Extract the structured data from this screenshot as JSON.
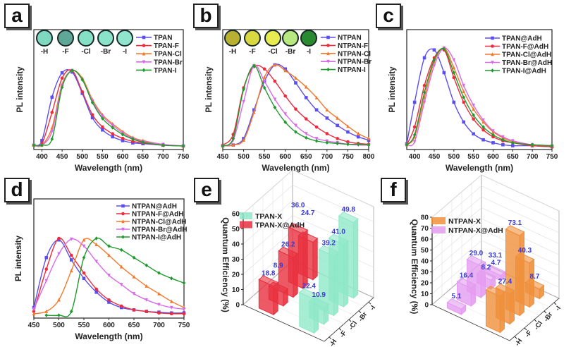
{
  "panels": [
    "a",
    "b",
    "c",
    "d",
    "e",
    "f"
  ],
  "chart_data": [
    {
      "panel": "a",
      "type": "line",
      "xlabel": "Wavelength (nm)",
      "ylabel": "PL intensity",
      "xlim": [
        380,
        750
      ],
      "xticks": [
        400,
        450,
        500,
        550,
        600,
        650,
        700,
        750
      ],
      "inset_labels": [
        "-H",
        "-F",
        "-Cl",
        "-Br",
        "-I"
      ],
      "inset_colors": [
        "#7fd8c0",
        "#5fa898",
        "#86e0c6",
        "#8ae2c8",
        "#8fe6cc"
      ],
      "x": [
        380,
        400,
        425,
        450,
        475,
        500,
        525,
        550,
        575,
        600,
        625,
        650,
        700,
        750
      ],
      "series": [
        {
          "name": "TPAN",
          "color": "#5a4ef0",
          "marker": "square",
          "values": [
            0.02,
            0.08,
            0.65,
            0.97,
            0.98,
            0.7,
            0.38,
            0.22,
            0.13,
            0.08,
            0.05,
            0.04,
            0.02,
            0.01
          ]
        },
        {
          "name": "TPAN-F",
          "color": "#ee2a3c",
          "marker": "circle",
          "values": [
            0.02,
            0.04,
            0.45,
            0.9,
            1.0,
            0.72,
            0.42,
            0.26,
            0.17,
            0.11,
            0.07,
            0.05,
            0.02,
            0.01
          ]
        },
        {
          "name": "TPAN-Cl",
          "color": "#f5772a",
          "marker": "triangle-up",
          "values": [
            0.02,
            0.02,
            0.25,
            0.82,
            1.0,
            0.9,
            0.62,
            0.42,
            0.3,
            0.2,
            0.12,
            0.08,
            0.03,
            0.01
          ]
        },
        {
          "name": "TPAN-Br",
          "color": "#d86ae8",
          "marker": "triangle-down",
          "values": [
            0.02,
            0.02,
            0.2,
            0.8,
            1.0,
            0.88,
            0.6,
            0.4,
            0.28,
            0.18,
            0.11,
            0.07,
            0.03,
            0.01
          ]
        },
        {
          "name": "TPAN-I",
          "color": "#1f9a2c",
          "marker": "star",
          "values": [
            0.02,
            0.02,
            0.1,
            0.78,
            1.0,
            0.88,
            0.58,
            0.37,
            0.25,
            0.16,
            0.1,
            0.06,
            0.02,
            0.01
          ]
        }
      ]
    },
    {
      "panel": "b",
      "type": "line",
      "xlabel": "Wavelength (nm)",
      "ylabel": "PL intensity",
      "xlim": [
        450,
        800
      ],
      "xticks": [
        450,
        500,
        550,
        600,
        650,
        700,
        750,
        800
      ],
      "inset_labels": [
        "-H",
        "-F",
        "-Cl",
        "-Br",
        "-I"
      ],
      "inset_colors": [
        "#b8b030",
        "#d8d840",
        "#e8ec50",
        "#b8e880",
        "#2a8a30"
      ],
      "x": [
        450,
        475,
        500,
        525,
        550,
        575,
        600,
        625,
        650,
        675,
        700,
        725,
        750,
        775,
        800
      ],
      "series": [
        {
          "name": "NTPAN",
          "color": "#5a4ef0",
          "marker": "square",
          "values": [
            0.01,
            0.02,
            0.1,
            0.45,
            0.8,
            1.0,
            0.95,
            0.78,
            0.6,
            0.45,
            0.35,
            0.26,
            0.18,
            0.12,
            0.08
          ]
        },
        {
          "name": "NTPAN-F",
          "color": "#ee2a3c",
          "marker": "circle",
          "values": [
            0.02,
            0.15,
            0.72,
            0.98,
            0.95,
            0.8,
            0.62,
            0.46,
            0.34,
            0.24,
            0.16,
            0.1,
            0.06,
            0.04,
            0.03
          ]
        },
        {
          "name": "NTPAN-Cl",
          "color": "#f5772a",
          "marker": "triangle-up",
          "values": [
            0.01,
            0.02,
            0.08,
            0.42,
            0.85,
            1.0,
            0.93,
            0.84,
            0.73,
            0.6,
            0.45,
            0.35,
            0.25,
            0.16,
            0.1
          ]
        },
        {
          "name": "NTPAN-Br",
          "color": "#d86ae8",
          "marker": "triangle-down",
          "values": [
            0.01,
            0.08,
            0.55,
            0.99,
            0.8,
            0.58,
            0.4,
            0.26,
            0.16,
            0.1,
            0.07,
            0.05,
            0.03,
            0.02,
            0.02
          ]
        },
        {
          "name": "NTPAN-I",
          "color": "#1f9a2c",
          "marker": "star",
          "values": [
            0.01,
            0.1,
            0.7,
            0.99,
            0.72,
            0.48,
            0.3,
            0.18,
            0.11,
            0.07,
            0.05,
            0.04,
            0.03,
            0.03,
            0.02
          ]
        }
      ]
    },
    {
      "panel": "c",
      "type": "line",
      "xlabel": "Wavelength (nm)",
      "ylabel": "PL intensity",
      "xlim": [
        380,
        750
      ],
      "xticks": [
        400,
        450,
        500,
        550,
        600,
        650,
        700,
        750
      ],
      "x": [
        380,
        400,
        425,
        450,
        475,
        500,
        525,
        550,
        575,
        600,
        625,
        650,
        700,
        750
      ],
      "series": [
        {
          "name": "TPAN@AdH",
          "color": "#5a4ef0",
          "marker": "square",
          "values": [
            0.03,
            0.45,
            0.9,
            0.98,
            0.75,
            0.45,
            0.25,
            0.13,
            0.07,
            0.04,
            0.02,
            0.01,
            0.01,
            0.0
          ]
        },
        {
          "name": "TPAN-F@AdH",
          "color": "#ee2a3c",
          "marker": "circle",
          "values": [
            0.02,
            0.2,
            0.62,
            0.9,
            0.98,
            0.7,
            0.45,
            0.28,
            0.17,
            0.1,
            0.06,
            0.04,
            0.01,
            0.0
          ]
        },
        {
          "name": "TPAN-Cl@AdH",
          "color": "#f5772a",
          "marker": "triangle-up",
          "values": [
            0.02,
            0.1,
            0.5,
            0.86,
            1.0,
            0.8,
            0.56,
            0.38,
            0.25,
            0.15,
            0.09,
            0.05,
            0.02,
            0.01
          ]
        },
        {
          "name": "TPAN-Br@AdH",
          "color": "#d86ae8",
          "marker": "triangle-down",
          "values": [
            0.02,
            0.05,
            0.45,
            0.82,
            1.0,
            0.88,
            0.62,
            0.42,
            0.27,
            0.16,
            0.1,
            0.06,
            0.02,
            0.01
          ]
        },
        {
          "name": "TPAN-I@AdH",
          "color": "#1f9a2c",
          "marker": "star",
          "values": [
            0.02,
            0.12,
            0.55,
            0.88,
            0.99,
            0.75,
            0.5,
            0.32,
            0.2,
            0.12,
            0.07,
            0.04,
            0.02,
            0.01
          ]
        }
      ]
    },
    {
      "panel": "d",
      "type": "line",
      "xlabel": "Wavelength (nm)",
      "ylabel": "PL intensity",
      "xlim": [
        450,
        750
      ],
      "xticks": [
        450,
        500,
        550,
        600,
        650,
        700,
        750
      ],
      "x": [
        450,
        475,
        500,
        525,
        550,
        575,
        600,
        625,
        650,
        675,
        700,
        725,
        750
      ],
      "series": [
        {
          "name": "NTPAN@AdH",
          "color": "#5a4ef0",
          "marker": "square",
          "values": [
            0.1,
            0.75,
            0.98,
            0.72,
            0.48,
            0.3,
            0.17,
            0.1,
            0.07,
            0.05,
            0.04,
            0.03,
            0.03
          ]
        },
        {
          "name": "NTPAN-F@AdH",
          "color": "#ee2a3c",
          "marker": "circle",
          "values": [
            0.05,
            0.6,
            1.0,
            0.78,
            0.55,
            0.34,
            0.2,
            0.12,
            0.07,
            0.05,
            0.03,
            0.02,
            0.02
          ]
        },
        {
          "name": "NTPAN-Cl@AdH",
          "color": "#f5772a",
          "marker": "triangle-up",
          "values": [
            0.02,
            0.05,
            0.2,
            0.58,
            0.98,
            0.92,
            0.78,
            0.63,
            0.5,
            0.38,
            0.28,
            0.18,
            0.1
          ]
        },
        {
          "name": "NTPAN-Br@AdH",
          "color": "#d86ae8",
          "marker": "triangle-down",
          "values": [
            0.08,
            0.45,
            0.8,
            0.99,
            0.9,
            0.7,
            0.52,
            0.4,
            0.28,
            0.2,
            0.14,
            0.1,
            0.08
          ]
        },
        {
          "name": "NTPAN-I@AdH",
          "color": "#1f9a2c",
          "marker": "star",
          "values": [
            null,
            0.0,
            0.0,
            0.05,
            0.75,
            1.0,
            0.9,
            0.85,
            0.75,
            0.65,
            0.55,
            0.48,
            0.42
          ]
        }
      ]
    },
    {
      "panel": "e",
      "type": "bar",
      "zlabel": "Quantum Efficiency (%)",
      "zlim": [
        0,
        60
      ],
      "zticks": [
        0,
        10,
        20,
        30,
        40,
        50,
        60
      ],
      "categories": [
        "-H",
        "-F",
        "-Cl",
        "-Br",
        "-I"
      ],
      "label_color": "#3b3bd6",
      "series": [
        {
          "name": "TPAN-X",
          "color": "#8fe8c8",
          "values": [
            22.4,
            10.9,
            39.2,
            41.0,
            49.8
          ],
          "labels": [
            "22.4",
            "10.9",
            "39.2",
            "41.0",
            "49.8"
          ]
        },
        {
          "name": "TPAN-X@AdH",
          "color": "#e8303e",
          "values": [
            18.8,
            8.9,
            26.2,
            36.0,
            24.7
          ],
          "labels": [
            "18.8",
            "8.9",
            "26.2",
            "36.0",
            "24.7"
          ]
        }
      ]
    },
    {
      "panel": "f",
      "type": "bar",
      "zlabel": "Quantum Efficiency (%)",
      "zlim": [
        0,
        80
      ],
      "zticks": [
        0,
        10,
        20,
        30,
        40,
        50,
        60,
        70,
        80
      ],
      "categories": [
        "-H",
        "-F",
        "-Cl",
        "-Br",
        "-I"
      ],
      "label_color": "#3b3bd6",
      "series": [
        {
          "name": "NTPAN-X",
          "color": "#f0903a",
          "values": [
            33.1,
            27.4,
            73.1,
            40.3,
            8.7
          ],
          "labels": [
            "33.1",
            "27.4",
            "73.1",
            "40.3",
            "8.7"
          ]
        },
        {
          "name": "NTPAN-X@AdH",
          "color": "#e49cf0",
          "values": [
            5.1,
            16.4,
            29.0,
            8.2,
            4.7
          ],
          "labels": [
            "5.1",
            "16.4",
            "29.0",
            "8.2",
            "4.7"
          ]
        }
      ]
    }
  ]
}
